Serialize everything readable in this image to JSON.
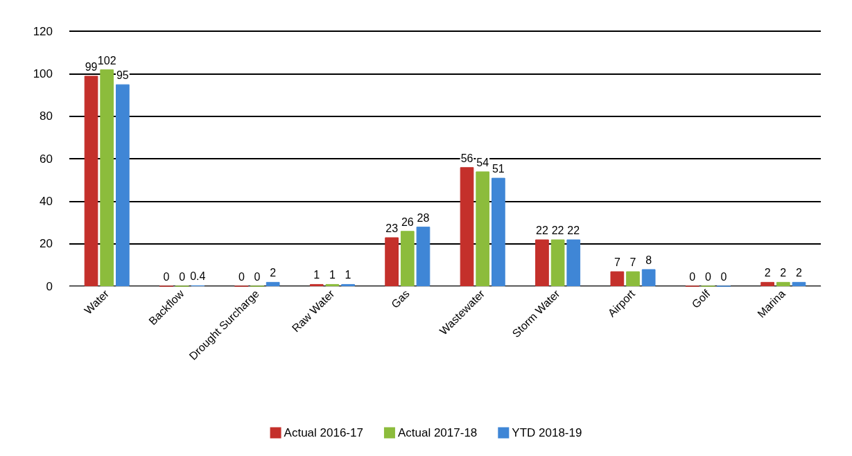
{
  "chart_data": {
    "type": "bar",
    "categories": [
      "Water",
      "Backflow",
      "Drought Surcharge",
      "Raw Water",
      "Gas",
      "Wastewater",
      "Storm Water",
      "Airport",
      "Golf",
      "Marina"
    ],
    "series": [
      {
        "name": "Actual 2016-17",
        "color": "#c4302b",
        "values": [
          99,
          0,
          0,
          1,
          23,
          56,
          22,
          7,
          0,
          2
        ]
      },
      {
        "name": "Actual 2017-18",
        "color": "#8cbc3c",
        "values": [
          102,
          0,
          0,
          1,
          26,
          54,
          22,
          7,
          0,
          2
        ]
      },
      {
        "name": "YTD 2018-19",
        "color": "#3f86d6",
        "values": [
          95,
          0.4,
          2,
          1,
          28,
          51,
          22,
          8,
          0,
          2
        ]
      }
    ],
    "ylim": [
      0,
      120
    ],
    "yticks": [
      0,
      20,
      40,
      60,
      80,
      100,
      120
    ],
    "grid": "y",
    "legend": "bottom",
    "data_labels": true
  }
}
